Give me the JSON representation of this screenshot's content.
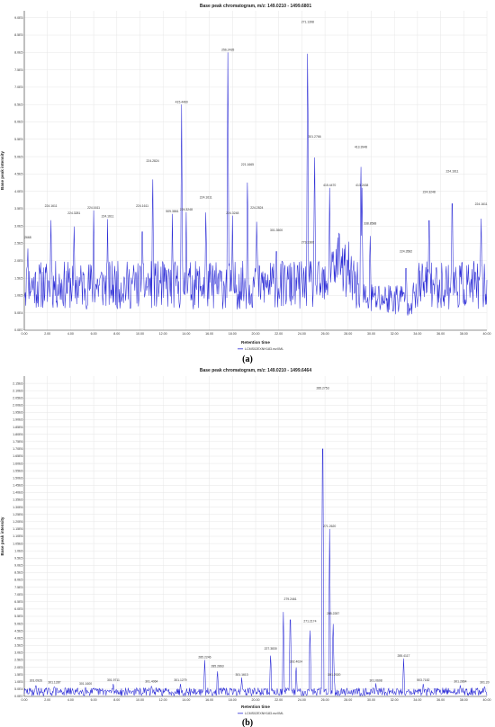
{
  "chart_data": [
    {
      "type": "line",
      "title": "Base peak chromatogram, m/z: 149.0210 - 1499.6801",
      "xlabel": "Retention time",
      "ylabel": "Base peak intensity",
      "xlim": [
        0,
        40
      ],
      "ylim": [
        0,
        920000.0
      ],
      "xticks": [
        "0.00",
        "2.00",
        "4.00",
        "6.00",
        "8.00",
        "10.00",
        "12.00",
        "14.00",
        "16.00",
        "18.00",
        "20.00",
        "22.00",
        "24.00",
        "26.00",
        "28.00",
        "30.00",
        "32.00",
        "34.00",
        "36.00",
        "38.00",
        "40.00"
      ],
      "yticks": [
        "0.0E0",
        "5.0E4",
        "1.0E5",
        "1.5E5",
        "2.0E5",
        "2.5E5",
        "3.0E5",
        "3.5E5",
        "4.0E5",
        "4.5E5",
        "5.0E5",
        "5.5E5",
        "6.0E5",
        "6.5E5",
        "7.0E5",
        "7.5E5",
        "8.0E5",
        "8.5E5",
        "9.0E5"
      ],
      "grid": true,
      "legend": "bottom-center",
      "panel_label": "(a)",
      "series": [
        {
          "name": "LCMS02EXNH183.mzXML",
          "color": "#2b2bd6",
          "baseline_min": 60000,
          "baseline_max": 200000
        }
      ],
      "peaks": [
        {
          "x": 0.3,
          "y": 260000,
          "label": "2668"
        },
        {
          "x": 2.3,
          "y": 350000,
          "label": "224.1611"
        },
        {
          "x": 4.3,
          "y": 330000,
          "label": "224.3281"
        },
        {
          "x": 6.0,
          "y": 345000,
          "label": "224.1611"
        },
        {
          "x": 7.2,
          "y": 320000,
          "label": "224.1611"
        },
        {
          "x": 10.2,
          "y": 350000,
          "label": "224.1611"
        },
        {
          "x": 11.1,
          "y": 480000,
          "label": "224.2824"
        },
        {
          "x": 12.8,
          "y": 335000,
          "label": "509.3861"
        },
        {
          "x": 13.6,
          "y": 650000,
          "label": "415.4460"
        },
        {
          "x": 14.0,
          "y": 340000,
          "label": "224.3248"
        },
        {
          "x": 15.7,
          "y": 375000,
          "label": "224.1611"
        },
        {
          "x": 17.6,
          "y": 800000,
          "label": "256.2435"
        },
        {
          "x": 18.0,
          "y": 330000,
          "label": "224.3248"
        },
        {
          "x": 19.3,
          "y": 470000,
          "label": "221.1665"
        },
        {
          "x": 20.1,
          "y": 345000,
          "label": "224.2824"
        },
        {
          "x": 21.8,
          "y": 280000,
          "label": "301.3500"
        },
        {
          "x": 24.5,
          "y": 880000,
          "label": "271.1398"
        },
        {
          "x": 24.5,
          "y": 245000,
          "label": "273.2360"
        },
        {
          "x": 25.1,
          "y": 550000,
          "label": "301.2766"
        },
        {
          "x": 26.4,
          "y": 410000,
          "label": "415.4470"
        },
        {
          "x": 29.1,
          "y": 520000,
          "label": "413.3948"
        },
        {
          "x": 29.2,
          "y": 410000,
          "label": "413.2438"
        },
        {
          "x": 29.9,
          "y": 300000,
          "label": "338.8588"
        },
        {
          "x": 33.0,
          "y": 220000,
          "label": "224.3582"
        },
        {
          "x": 35.0,
          "y": 390000,
          "label": "224.3248"
        },
        {
          "x": 37.0,
          "y": 450000,
          "label": "224.1611"
        },
        {
          "x": 39.5,
          "y": 355000,
          "label": "224.1611"
        }
      ]
    },
    {
      "type": "line",
      "title": "Base peak chromatogram, m/z: 149.0210 - 1499.6464",
      "xlabel": "Retention time",
      "ylabel": "Base peak intensity",
      "xlim": [
        0,
        40
      ],
      "ylim": [
        0,
        2200000.0
      ],
      "xticks": [
        "0.00",
        "2.00",
        "4.00",
        "6.00",
        "8.00",
        "10.00",
        "12.00",
        "14.00",
        "16.00",
        "18.00",
        "20.00",
        "22.00",
        "24.00",
        "26.00",
        "28.00",
        "30.00",
        "32.00",
        "34.00",
        "36.00",
        "38.00",
        "40.00"
      ],
      "yticks": [
        "0.0E0",
        "5.0E4",
        "1.0E5",
        "1.5E5",
        "2.0E5",
        "2.5E5",
        "3.0E5",
        "3.5E5",
        "4.0E5",
        "4.5E5",
        "5.0E5",
        "5.5E5",
        "6.0E5",
        "6.5E5",
        "7.0E5",
        "7.5E5",
        "8.0E5",
        "8.5E5",
        "9.0E5",
        "9.5E5",
        "1.0E6",
        "1.05E6",
        "1.10E6",
        "1.15E6",
        "1.20E6",
        "1.25E6",
        "1.30E6",
        "1.35E6",
        "1.40E6",
        "1.45E6",
        "1.50E6",
        "1.55E6",
        "1.60E6",
        "1.65E6",
        "1.70E6",
        "1.75E6",
        "1.80E6",
        "1.85E6",
        "1.90E6",
        "1.95E6",
        "2.00E6",
        "2.05E6",
        "2.10E6",
        "2.15E6"
      ],
      "grid": true,
      "legend": "bottom-center",
      "panel_label": "(b)",
      "series": [
        {
          "name": "LCMS02EXNH183.mzXML",
          "color": "#2b2bd6",
          "baseline_min": 5000,
          "baseline_max": 60000
        }
      ],
      "peaks": [
        {
          "x": 1.0,
          "y": 90000,
          "label": "301.0926"
        },
        {
          "x": 2.6,
          "y": 80000,
          "label": "301.1287"
        },
        {
          "x": 5.3,
          "y": 70000,
          "label": "301.1600"
        },
        {
          "x": 7.7,
          "y": 95000,
          "label": "301.9711"
        },
        {
          "x": 11.0,
          "y": 85000,
          "label": "301.4064"
        },
        {
          "x": 13.5,
          "y": 95000,
          "label": "301.1279"
        },
        {
          "x": 15.6,
          "y": 250000,
          "label": "285.2246"
        },
        {
          "x": 16.7,
          "y": 190000,
          "label": "285.2863"
        },
        {
          "x": 18.8,
          "y": 130000,
          "label": "301.1613"
        },
        {
          "x": 21.3,
          "y": 310000,
          "label": "227.3830"
        },
        {
          "x": 22.4,
          "y": 580000,
          "label": ""
        },
        {
          "x": 23.0,
          "y": 650000,
          "label": "279.2461"
        },
        {
          "x": 23.5,
          "y": 220000,
          "label": "302.4024"
        },
        {
          "x": 24.7,
          "y": 500000,
          "label": "271.2174"
        },
        {
          "x": 25.8,
          "y": 2100000,
          "label": "285.2753"
        },
        {
          "x": 26.4,
          "y": 1150000,
          "label": "271.2620"
        },
        {
          "x": 26.7,
          "y": 550000,
          "label": "285.2287"
        },
        {
          "x": 26.8,
          "y": 130000,
          "label": "301.2020"
        },
        {
          "x": 30.4,
          "y": 90000,
          "label": "301.0608"
        },
        {
          "x": 32.8,
          "y": 260000,
          "label": "285.4117"
        },
        {
          "x": 34.5,
          "y": 95000,
          "label": "503.7182"
        },
        {
          "x": 37.7,
          "y": 85000,
          "label": "301.2864"
        },
        {
          "x": 39.8,
          "y": 80000,
          "label": "301.20"
        }
      ]
    }
  ]
}
